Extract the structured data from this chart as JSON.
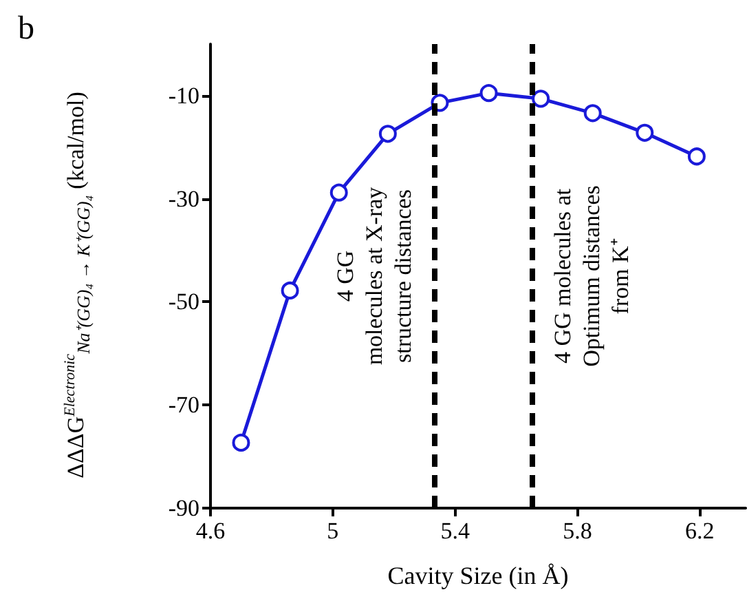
{
  "chart_data": {
    "type": "line",
    "title": "b",
    "xlabel": "Cavity Size (in Å)",
    "ylabel": "ΔΔΔG$^{Electronic}$$_{Na⁺(GG)₄ → K⁺(GG)₄}$ (kcal/mol)",
    "x": [
      4.7,
      4.86,
      5.02,
      5.18,
      5.35,
      5.51,
      5.68,
      5.85,
      6.02,
      6.19
    ],
    "series": [
      {
        "color": "#1a1ad9",
        "values": [
          -77.3,
          -47.8,
          -28.8,
          -17.4,
          -11.4,
          -9.5,
          -10.6,
          -13.4,
          -17.2,
          -21.8
        ]
      }
    ],
    "xlim": [
      4.6,
      6.35
    ],
    "xticks": [
      4.6,
      5,
      5.4,
      5.8,
      6.2
    ],
    "ylim": [
      -90,
      0
    ],
    "yticks": [
      -90,
      -70,
      -50,
      -30,
      -10
    ],
    "ref_lines": [
      {
        "axis": "x",
        "value": 5.33,
        "label": "4 GG\nmolecules at X-ray\nstructure distances",
        "color": "#000000",
        "line_style": "dashed"
      },
      {
        "axis": "x",
        "value": 5.65,
        "label": "4 GG molecules at\nOptimum distances\nfrom K⁺",
        "color": "#000000",
        "line_style": "dashed"
      }
    ],
    "marker": "circle",
    "line_style": "solid"
  }
}
